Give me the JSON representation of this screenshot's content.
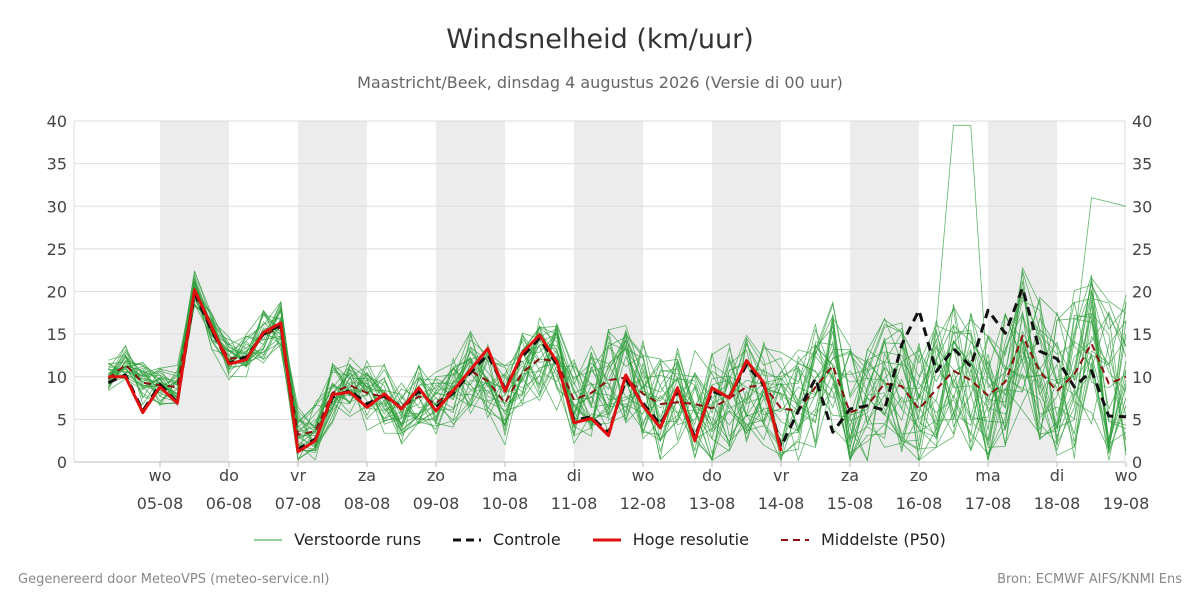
{
  "title": "Windsnelheid (km/uur)",
  "subtitle": "Maastricht/Beek, dinsdag  4 augustus 2026 (Versie di 00 uur)",
  "footer": {
    "left": "Gegenereerd door MeteoVPS (meteo-service.nl)",
    "right": "Bron: ECMWF AIFS/KNMI Ens"
  },
  "legend": [
    {
      "key": "ens",
      "label": "Verstoorde runs"
    },
    {
      "key": "control",
      "label": "Controle"
    },
    {
      "key": "hires",
      "label": "Hoge resolutie"
    },
    {
      "key": "p50",
      "label": "Middelste (P50)"
    }
  ],
  "colors": {
    "ens": "#2e9e3a",
    "control": "#111111",
    "hires": "#e01010",
    "p50": "#8b1010",
    "shade": "#ececec",
    "grid": "#dddddd"
  },
  "chart_data": {
    "type": "line",
    "x_unit": "days since 05-08 00h (day index)",
    "xlim": [
      -0.75,
      14
    ],
    "ylim": [
      0,
      40
    ],
    "yticks": [
      0,
      5,
      10,
      15,
      20,
      25,
      30,
      35,
      40
    ],
    "grid": true,
    "legend_position": "bottom",
    "xticks": [
      {
        "x": 0,
        "day": "wo",
        "date": "05-08"
      },
      {
        "x": 1,
        "day": "do",
        "date": "06-08"
      },
      {
        "x": 2,
        "day": "vr",
        "date": "07-08"
      },
      {
        "x": 3,
        "day": "za",
        "date": "08-08"
      },
      {
        "x": 4,
        "day": "zo",
        "date": "09-08"
      },
      {
        "x": 5,
        "day": "ma",
        "date": "10-08"
      },
      {
        "x": 6,
        "day": "di",
        "date": "11-08"
      },
      {
        "x": 7,
        "day": "wo",
        "date": "12-08"
      },
      {
        "x": 8,
        "day": "do",
        "date": "13-08"
      },
      {
        "x": 9,
        "day": "vr",
        "date": "14-08"
      },
      {
        "x": 10,
        "day": "za",
        "date": "15-08"
      },
      {
        "x": 11,
        "day": "zo",
        "date": "16-08"
      },
      {
        "x": 12,
        "day": "ma",
        "date": "17-08"
      },
      {
        "x": 13,
        "day": "di",
        "date": "18-08"
      },
      {
        "x": 14,
        "day": "wo",
        "date": "19-08"
      }
    ],
    "shaded_days": [
      [
        0,
        1
      ],
      [
        2,
        3
      ],
      [
        4,
        5
      ],
      [
        6,
        7
      ],
      [
        8,
        9
      ],
      [
        10,
        11
      ],
      [
        12,
        13
      ]
    ],
    "hires": {
      "x": [
        -0.75,
        -0.5,
        -0.25,
        0,
        0.25,
        0.5,
        0.75,
        1,
        1.25,
        1.5,
        1.75,
        2,
        2.25,
        2.5,
        2.75,
        3,
        3.25,
        3.5,
        3.75,
        4,
        4.25,
        4.5,
        4.75,
        5,
        5.25,
        5.5,
        5.75,
        6,
        6.25,
        6.5,
        6.75,
        7,
        7.25,
        7.5,
        7.75,
        8,
        8.25,
        8.5,
        8.75,
        9
      ],
      "y": [
        10,
        10,
        5.8,
        8.8,
        6.9,
        20.2,
        15.8,
        11.5,
        12,
        15.2,
        16.3,
        1.2,
        2.5,
        7.9,
        8.2,
        6.4,
        8,
        6.2,
        8.7,
        6,
        8.4,
        10.8,
        13.3,
        8.3,
        12.8,
        14.9,
        11.8,
        4.6,
        5.1,
        3.1,
        10.2,
        6.6,
        4,
        8.7,
        2.5,
        8.7,
        7.5,
        11.9,
        9.3,
        1.3
      ]
    },
    "control": {
      "x": [
        -0.75,
        -0.5,
        -0.25,
        0,
        0.25,
        0.5,
        0.75,
        1,
        1.25,
        1.5,
        1.75,
        2,
        2.25,
        2.5,
        2.75,
        3,
        3.25,
        3.5,
        3.75,
        4,
        4.25,
        4.5,
        4.75,
        5,
        5.25,
        5.5,
        5.75,
        6,
        6.25,
        6.5,
        6.75,
        7,
        7.25,
        7.5,
        7.75,
        8,
        8.25,
        8.5,
        8.75,
        9,
        9.25,
        9.5,
        9.75,
        10,
        10.25,
        10.5,
        10.75,
        11,
        11.25,
        11.5,
        11.75,
        12,
        12.25,
        12.5,
        12.75,
        13,
        13.25,
        13.5,
        13.75,
        14
      ],
      "y": [
        9.3,
        10.2,
        6,
        9.1,
        7,
        19.8,
        15.4,
        11.6,
        12.3,
        15,
        16.1,
        1.5,
        2.7,
        7.6,
        8.4,
        6.8,
        7.8,
        6.4,
        8.3,
        6.4,
        8.1,
        10.5,
        12.6,
        8.6,
        12.4,
        14.5,
        11.5,
        4.9,
        5.3,
        3.4,
        9.7,
        6.9,
        4.4,
        8.3,
        2.9,
        8.3,
        7.6,
        11.4,
        9.1,
        1.8,
        6,
        9.8,
        3.5,
        6.2,
        6.6,
        6.1,
        13.8,
        17.8,
        10.6,
        13.3,
        11.2,
        17.8,
        15.1,
        20.4,
        13,
        12.1,
        8.8,
        10.7,
        5.4,
        5.3
      ]
    },
    "p50": {
      "x": [
        -0.75,
        -0.5,
        -0.25,
        0,
        0.25,
        0.5,
        0.75,
        1,
        1.25,
        1.5,
        1.75,
        2,
        2.25,
        2.5,
        2.75,
        3,
        3.25,
        3.5,
        3.75,
        4,
        4.25,
        4.5,
        4.75,
        5,
        5.25,
        5.5,
        5.75,
        6,
        6.25,
        6.5,
        6.75,
        7,
        7.25,
        7.5,
        7.75,
        8,
        8.25,
        8.5,
        8.75,
        9,
        9.25,
        9.5,
        9.75,
        10,
        10.25,
        10.5,
        10.75,
        11,
        11.25,
        11.5,
        11.75,
        12,
        12.25,
        12.5,
        12.75,
        13,
        13.25,
        13.5,
        13.75,
        14
      ],
      "y": [
        9.8,
        11.4,
        9.3,
        9,
        8.8,
        19.8,
        15.4,
        12.1,
        12.3,
        14.9,
        15.8,
        3.2,
        3.6,
        8.1,
        9,
        8.1,
        7.6,
        6.4,
        7.7,
        6.9,
        8.5,
        10.7,
        9.5,
        6.9,
        10.5,
        12.1,
        11.8,
        7.3,
        8.1,
        9.6,
        9.9,
        8,
        6.8,
        7,
        6.8,
        6.3,
        7.5,
        8.8,
        9,
        6.3,
        6,
        8.8,
        11.3,
        5.8,
        6.6,
        9.2,
        8.9,
        6.2,
        8.5,
        10.7,
        9.6,
        7.8,
        9.4,
        14.8,
        10.6,
        8.3,
        10.3,
        13.9,
        9.2,
        10
      ]
    },
    "ensemble_members": 30,
    "ensemble_note": "30 perturbed runs scattered around the median, range 0 to 39.7"
  }
}
